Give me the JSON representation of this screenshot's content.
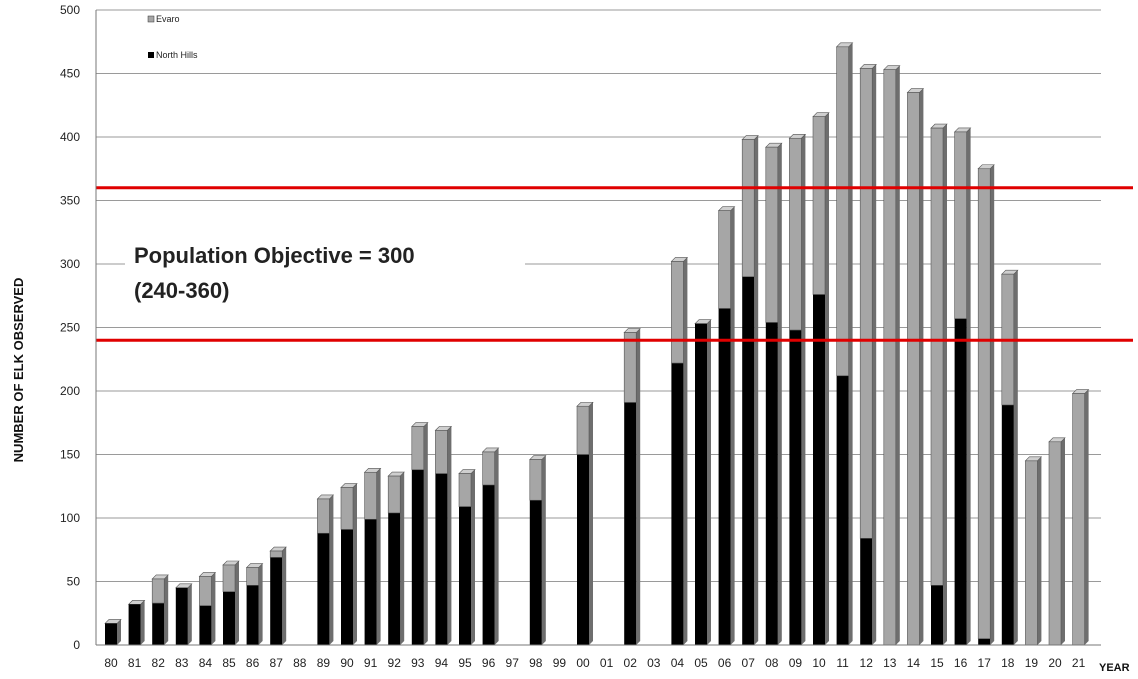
{
  "chart_data": {
    "type": "bar",
    "stacked": true,
    "ylabel": "NUMBER OF ELK OBSERVED",
    "xlabel": "YEAR",
    "ylim": [
      0,
      500
    ],
    "yticks": [
      0,
      50,
      100,
      150,
      200,
      250,
      300,
      350,
      400,
      450,
      500
    ],
    "grid": true,
    "legend_position": "top-left",
    "categories": [
      "80",
      "81",
      "82",
      "83",
      "84",
      "85",
      "86",
      "87",
      "88",
      "89",
      "90",
      "91",
      "92",
      "93",
      "94",
      "95",
      "96",
      "97",
      "98",
      "99",
      "00",
      "01",
      "02",
      "03",
      "04",
      "05",
      "06",
      "07",
      "08",
      "09",
      "10",
      "11",
      "12",
      "13",
      "14",
      "15",
      "16",
      "17",
      "18",
      "19",
      "20",
      "21"
    ],
    "series": [
      {
        "name": "North Hills",
        "color": "#000000",
        "values": [
          17,
          32,
          33,
          45,
          31,
          42,
          47,
          69,
          0,
          88,
          91,
          99,
          104,
          138,
          135,
          109,
          126,
          0,
          114,
          0,
          150,
          0,
          191,
          0,
          222,
          253,
          265,
          290,
          254,
          248,
          276,
          212,
          84,
          0,
          0,
          47,
          257,
          5,
          189,
          0,
          0,
          0
        ]
      },
      {
        "name": "Evaro",
        "color": "#a6a6a6",
        "values": [
          0,
          0,
          19,
          0,
          23,
          21,
          14,
          5,
          0,
          27,
          33,
          37,
          29,
          34,
          34,
          26,
          26,
          0,
          32,
          0,
          38,
          0,
          55,
          0,
          80,
          0,
          77,
          108,
          138,
          151,
          140,
          259,
          370,
          453,
          435,
          360,
          147,
          370,
          103,
          145,
          160,
          198
        ]
      }
    ],
    "reference_lines": [
      {
        "value": 360,
        "color": "#e00000"
      },
      {
        "value": 240,
        "color": "#e00000"
      }
    ],
    "annotation": {
      "line1": "Population Objective = 300",
      "line2": "(240-360)"
    }
  }
}
